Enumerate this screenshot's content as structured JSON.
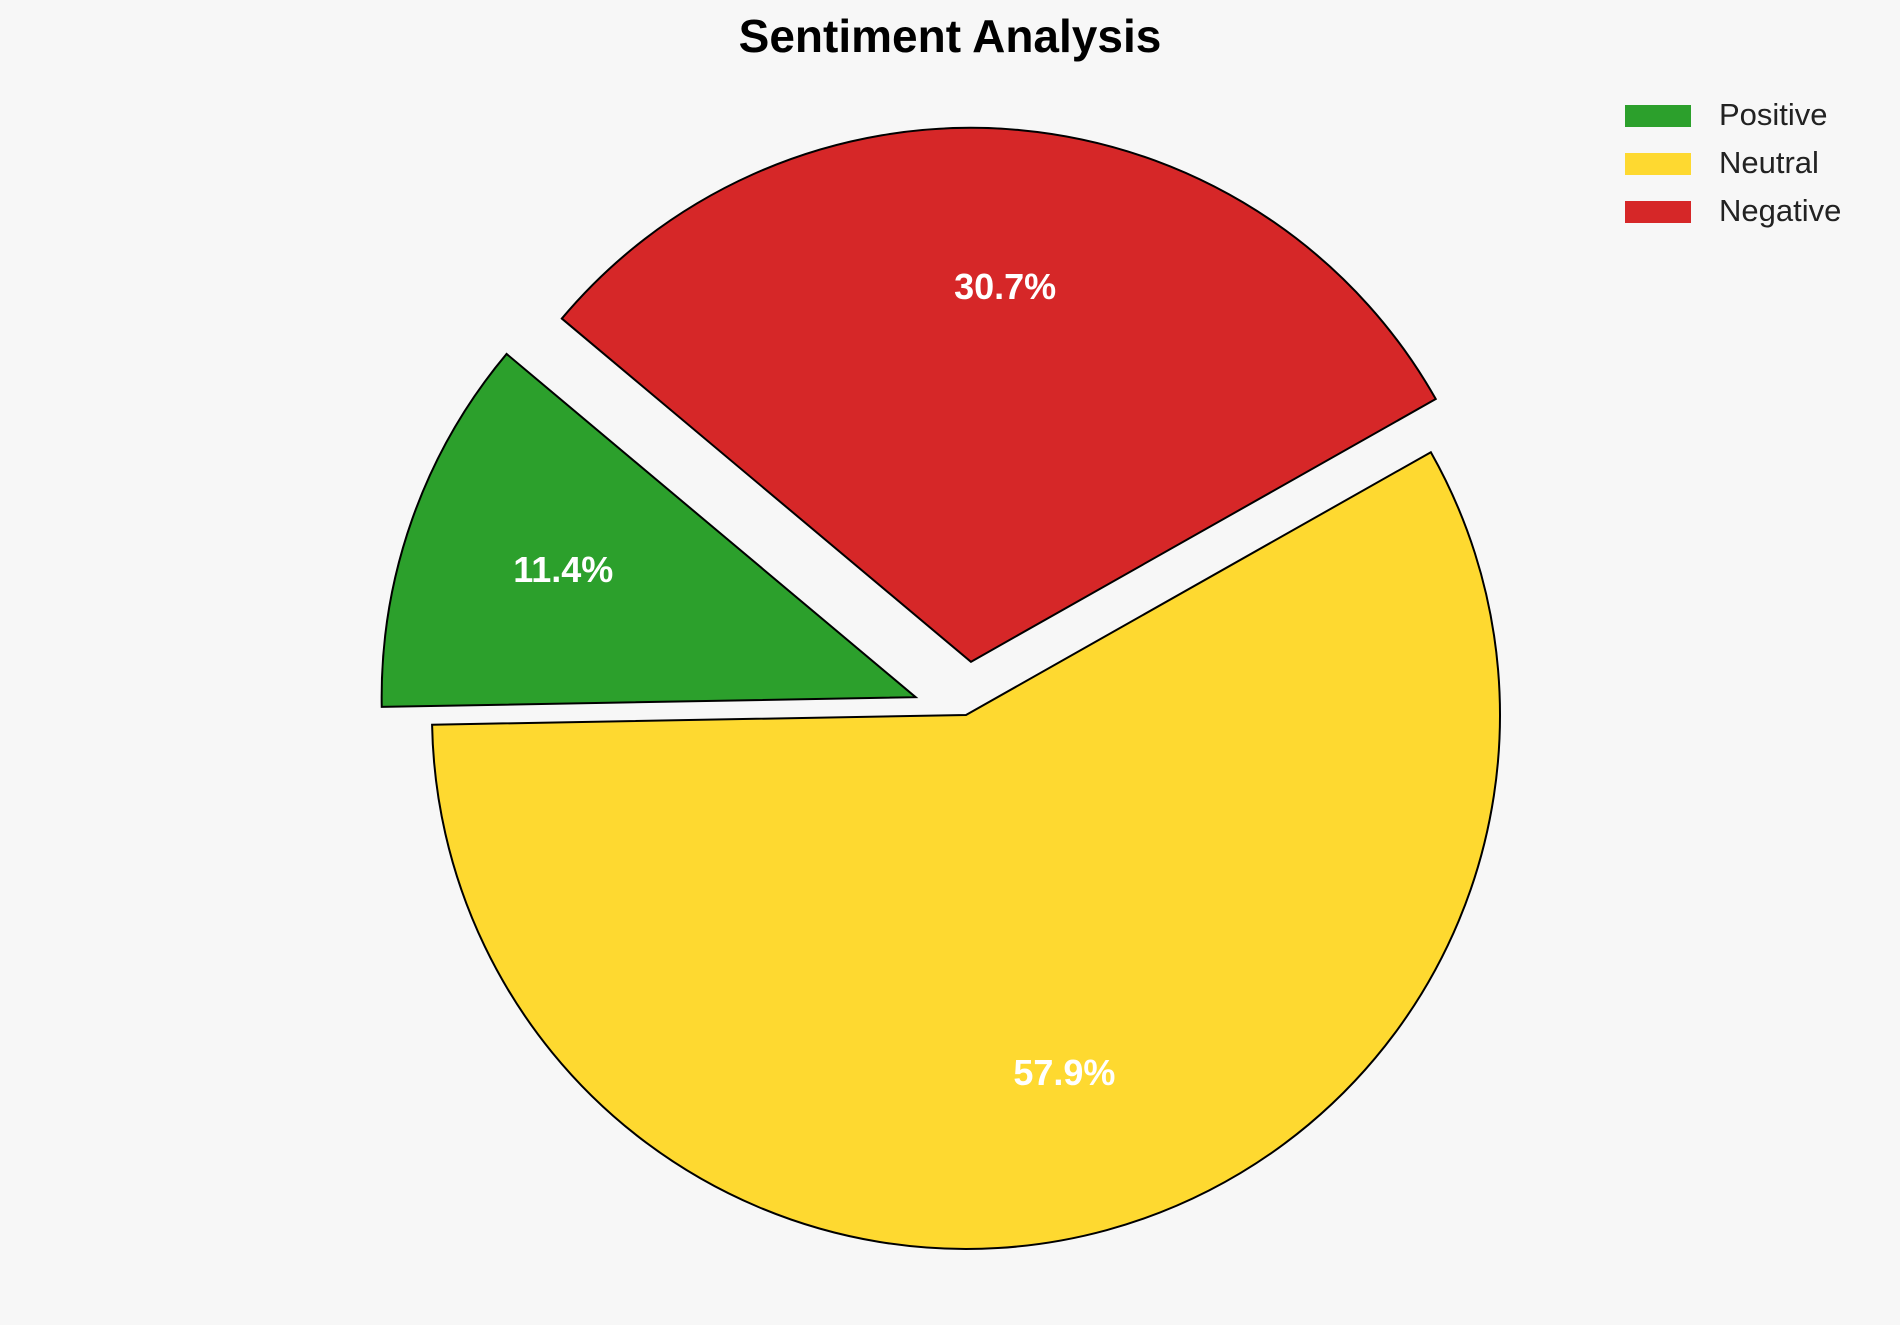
{
  "chart_data": {
    "type": "pie",
    "title": "Sentiment Analysis",
    "categories": [
      "Positive",
      "Neutral",
      "Negative"
    ],
    "values": [
      11.4,
      57.9,
      30.7
    ],
    "value_labels": [
      "11.4%",
      "57.9%",
      "30.7%"
    ],
    "colors": [
      "#2ca02c",
      "#fed930",
      "#d62728"
    ],
    "legend": "upper right"
  }
}
